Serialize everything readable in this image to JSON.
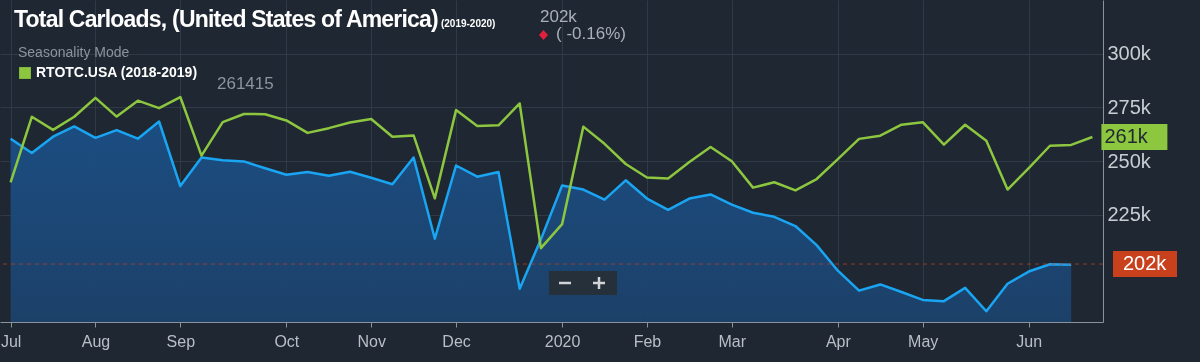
{
  "chart_data": {
    "type": "line",
    "title": "Total Carloads, (United States of America)",
    "subtitle": "(2019-2020)",
    "legend_title": "Seasonality Mode",
    "annotations": [
      "202k",
      "( -0.16%)",
      "261415"
    ],
    "categories": [
      "Jul",
      null,
      null,
      null,
      "Aug",
      null,
      null,
      null,
      "Sep",
      null,
      null,
      null,
      null,
      "Oct",
      null,
      null,
      null,
      "Nov",
      null,
      null,
      null,
      "Dec",
      null,
      null,
      null,
      null,
      "2020",
      null,
      null,
      null,
      "Feb",
      null,
      null,
      null,
      "Mar",
      null,
      null,
      null,
      null,
      "Apr",
      null,
      null,
      null,
      "May",
      null,
      null,
      null,
      null,
      "Jun",
      null,
      null,
      null
    ],
    "series": [
      {
        "type": "area",
        "color": "#1aa5f2",
        "values": [
          260400,
          253700,
          261300,
          266100,
          260800,
          264400,
          260400,
          268400,
          238300,
          251600,
          250300,
          249800,
          246600,
          243600,
          244900,
          243100,
          245000,
          242200,
          239200,
          251600,
          213800,
          247900,
          242700,
          244900,
          190500,
          213500,
          238600,
          236700,
          232000,
          241000,
          232500,
          227200,
          232500,
          234400,
          229700,
          225900,
          224000,
          219700,
          210800,
          198900,
          189600,
          192500,
          189000,
          185300,
          184700,
          190900,
          180000,
          192800,
          198500,
          201900,
          201700,
          null
        ]
      },
      {
        "name": "RTOTC.USA (2018-2019)",
        "color": "#8dc63f",
        "values": [
          240000,
          270600,
          264500,
          270600,
          279400,
          270700,
          278100,
          274600,
          279800,
          252500,
          268100,
          271900,
          271800,
          268900,
          263100,
          265300,
          267900,
          269600,
          261300,
          261900,
          232600,
          273700,
          266300,
          266600,
          276800,
          209400,
          220600,
          266000,
          258000,
          248600,
          242300,
          241900,
          249500,
          256500,
          249900,
          237600,
          240100,
          236300,
          241600,
          250900,
          260300,
          261800,
          266900,
          268100,
          257600,
          266900,
          259400,
          236700,
          246700,
          257100,
          257500,
          261200
        ],
        "value_labels": [
          null,
          null,
          null,
          null,
          null,
          null,
          null,
          null,
          null,
          null,
          null,
          null,
          null,
          null,
          null,
          null,
          null,
          null,
          null,
          null,
          null,
          null,
          null,
          null,
          null,
          null,
          null,
          null,
          null,
          null,
          null,
          null,
          null,
          null,
          null,
          null,
          null,
          null,
          null,
          null,
          null,
          null,
          null,
          null,
          null,
          null,
          null,
          null,
          null,
          null,
          null,
          "261k"
        ]
      }
    ],
    "ylim": [
      175000,
      325000
    ],
    "yticks": [
      {
        "value": 225000,
        "label": "225k"
      },
      {
        "value": 250000,
        "label": "250k"
      },
      {
        "value": 275000,
        "label": "275k"
      },
      {
        "value": 300000,
        "label": "300k"
      }
    ],
    "ref_lines": [
      {
        "axis": "y",
        "value": 202000,
        "label": "202k",
        "color": "#c8401c",
        "line_style": "dashed"
      }
    ],
    "grid": true,
    "legend": "top left"
  }
}
